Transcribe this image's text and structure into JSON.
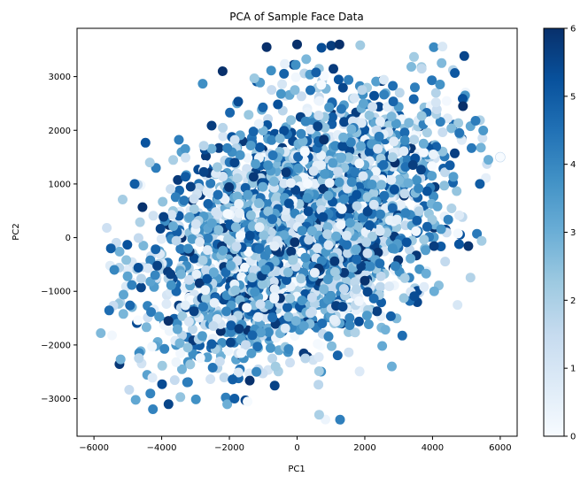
{
  "chart_data": {
    "type": "scatter",
    "title": "PCA of Sample Face Data",
    "xlabel": "PC1",
    "ylabel": "PC2",
    "xlim": [
      -6500,
      6500
    ],
    "ylim": [
      -3700,
      3900
    ],
    "x_ticks": [
      -6000,
      -4000,
      -2000,
      0,
      2000,
      4000,
      6000
    ],
    "x_tick_labels": [
      "−6000",
      "−4000",
      "−2000",
      "0",
      "2000",
      "4000",
      "6000"
    ],
    "y_ticks": [
      -3000,
      -2000,
      -1000,
      0,
      1000,
      2000,
      3000
    ],
    "y_tick_labels": [
      "−3000",
      "−2000",
      "−1000",
      "0",
      "1000",
      "2000",
      "3000"
    ],
    "grid": false,
    "colormap": "Blues",
    "colorbar": {
      "range": [
        0,
        6
      ],
      "ticks": [
        0,
        1,
        2,
        3,
        4,
        5,
        6
      ],
      "tick_labels": [
        "0",
        "1",
        "2",
        "3",
        "4",
        "5",
        "6"
      ]
    },
    "point_cloud": {
      "center": [
        0,
        150
      ],
      "sd_major": 2200,
      "sd_minor": 1050,
      "angle_deg": 16,
      "count": 2800,
      "clip_x": [
        -5800,
        6000
      ],
      "clip_y": [
        -3500,
        3700
      ],
      "value_range": [
        0,
        6
      ]
    },
    "points": [
      {
        "x": 6000,
        "y": 1500,
        "c": 0
      },
      {
        "x": -5500,
        "y": -200,
        "c": 5
      },
      {
        "x": -5400,
        "y": -600,
        "c": 4
      },
      {
        "x": 4900,
        "y": 2450,
        "c": 6
      },
      {
        "x": 1250,
        "y": 3600,
        "c": 6
      },
      {
        "x": -900,
        "y": 3550,
        "c": 6
      },
      {
        "x": -3800,
        "y": -1550,
        "c": 6
      },
      {
        "x": 2800,
        "y": -2400,
        "c": 3
      },
      {
        "x": -1850,
        "y": -3000,
        "c": 5
      },
      {
        "x": 650,
        "y": -3300,
        "c": 2
      },
      {
        "x": 4050,
        "y": -1000,
        "c": 3
      },
      {
        "x": 5400,
        "y": 1000,
        "c": 5
      },
      {
        "x": 5650,
        "y": 1450,
        "c": 3
      },
      {
        "x": -4350,
        "y": 1400,
        "c": 2
      },
      {
        "x": -4800,
        "y": 1000,
        "c": 5
      },
      {
        "x": 0,
        "y": 3600,
        "c": 6
      },
      {
        "x": -2200,
        "y": 3100,
        "c": 6
      },
      {
        "x": -1200,
        "y": -2500,
        "c": 4
      }
    ]
  }
}
